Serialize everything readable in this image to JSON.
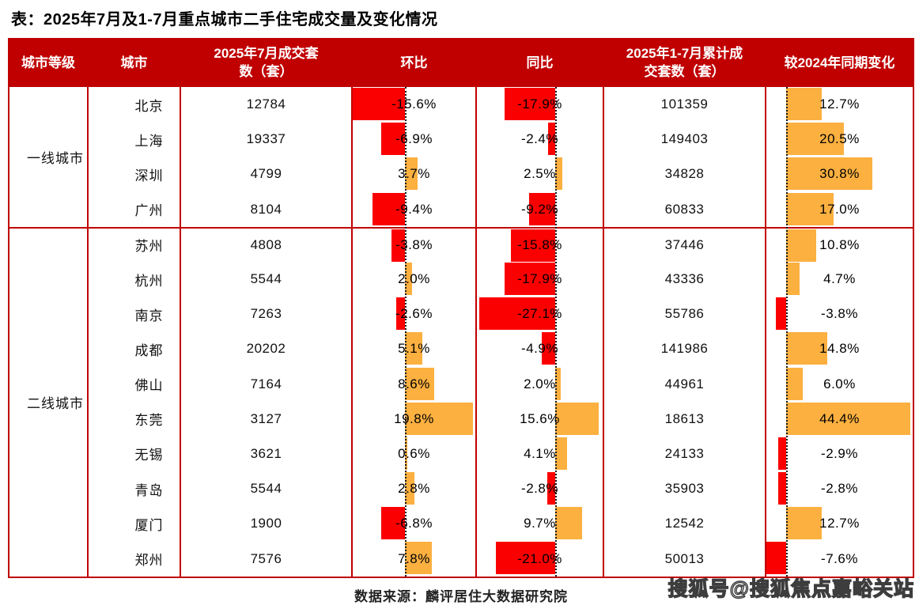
{
  "title": "表：2025年7月及1-7月重点城市二手住宅成交量及变化情况",
  "colors": {
    "header_red": "#C00000",
    "negative_bar_red": "#FB0000",
    "positive_bar_orange": "#FBB040"
  },
  "header": {
    "tier": "城市等级",
    "city": "城市",
    "july_sales": "2025年7月成交套\n数（套）",
    "mom": "环比",
    "yoy": "同比",
    "cum_sales": "2025年1-7月累计成\n交套数（套）",
    "vs2024": "较2024年同期变化"
  },
  "groups": [
    {
      "tier": "一线城市",
      "rows": [
        {
          "city": "北京",
          "july": "12784",
          "mom": {
            "value": -15.6,
            "label": "-15.6%"
          },
          "yoy": {
            "value": -17.9,
            "label": "-17.9%"
          },
          "cum": "101359",
          "chg": {
            "value": 12.7,
            "label": "12.7%"
          }
        },
        {
          "city": "上海",
          "july": "19337",
          "mom": {
            "value": -6.9,
            "label": "-6.9%"
          },
          "yoy": {
            "value": -2.4,
            "label": "-2.4%"
          },
          "cum": "149403",
          "chg": {
            "value": 20.5,
            "label": "20.5%"
          }
        },
        {
          "city": "深圳",
          "july": "4799",
          "mom": {
            "value": 3.7,
            "label": "3.7%"
          },
          "yoy": {
            "value": 2.5,
            "label": "2.5%"
          },
          "cum": "34828",
          "chg": {
            "value": 30.8,
            "label": "30.8%"
          }
        },
        {
          "city": "广州",
          "july": "8104",
          "mom": {
            "value": -9.4,
            "label": "-9.4%"
          },
          "yoy": {
            "value": -9.2,
            "label": "-9.2%"
          },
          "cum": "60833",
          "chg": {
            "value": 17.0,
            "label": "17.0%"
          }
        }
      ]
    },
    {
      "tier": "二线城市",
      "rows": [
        {
          "city": "苏州",
          "july": "4808",
          "mom": {
            "value": -3.8,
            "label": "-3.8%"
          },
          "yoy": {
            "value": -15.8,
            "label": "-15.8%"
          },
          "cum": "37446",
          "chg": {
            "value": 10.8,
            "label": "10.8%"
          }
        },
        {
          "city": "杭州",
          "july": "5544",
          "mom": {
            "value": 2.0,
            "label": "2.0%"
          },
          "yoy": {
            "value": -17.9,
            "label": "-17.9%"
          },
          "cum": "43336",
          "chg": {
            "value": 4.7,
            "label": "4.7%"
          }
        },
        {
          "city": "南京",
          "july": "7263",
          "mom": {
            "value": -2.6,
            "label": "-2.6%"
          },
          "yoy": {
            "value": -27.1,
            "label": "-27.1%"
          },
          "cum": "55786",
          "chg": {
            "value": -3.8,
            "label": "-3.8%"
          }
        },
        {
          "city": "成都",
          "july": "20202",
          "mom": {
            "value": 5.1,
            "label": "5.1%"
          },
          "yoy": {
            "value": -4.9,
            "label": "-4.9%"
          },
          "cum": "141986",
          "chg": {
            "value": 14.8,
            "label": "14.8%"
          }
        },
        {
          "city": "佛山",
          "july": "7164",
          "mom": {
            "value": 8.6,
            "label": "8.6%"
          },
          "yoy": {
            "value": 2.0,
            "label": "2.0%"
          },
          "cum": "44961",
          "chg": {
            "value": 6.0,
            "label": "6.0%"
          }
        },
        {
          "city": "东莞",
          "july": "3127",
          "mom": {
            "value": 19.8,
            "label": "19.8%"
          },
          "yoy": {
            "value": 15.6,
            "label": "15.6%"
          },
          "cum": "18613",
          "chg": {
            "value": 44.4,
            "label": "44.4%"
          }
        },
        {
          "city": "无锡",
          "july": "3621",
          "mom": {
            "value": 0.6,
            "label": "0.6%"
          },
          "yoy": {
            "value": 4.1,
            "label": "4.1%"
          },
          "cum": "24133",
          "chg": {
            "value": -2.9,
            "label": "-2.9%"
          }
        },
        {
          "city": "青岛",
          "july": "5544",
          "mom": {
            "value": 2.8,
            "label": "2.8%"
          },
          "yoy": {
            "value": -2.8,
            "label": "-2.8%"
          },
          "cum": "35903",
          "chg": {
            "value": -2.8,
            "label": "-2.8%"
          }
        },
        {
          "city": "厦门",
          "july": "1900",
          "mom": {
            "value": -6.8,
            "label": "-6.8%"
          },
          "yoy": {
            "value": 9.7,
            "label": "9.7%"
          },
          "cum": "12542",
          "chg": {
            "value": 12.7,
            "label": "12.7%"
          }
        },
        {
          "city": "郑州",
          "july": "7576",
          "mom": {
            "value": 7.8,
            "label": "7.8%"
          },
          "yoy": {
            "value": -21.0,
            "label": "-21.0%"
          },
          "cum": "50013",
          "chg": {
            "value": -7.6,
            "label": "-7.6%"
          }
        }
      ]
    }
  ],
  "footer": {
    "source": "数据来源：麟评居住大数据研究院",
    "watermark": "搜狐号@搜狐焦点嘉峪关站"
  },
  "chart_data": {
    "type": "table",
    "title": "表：2025年7月及1-7月重点城市二手住宅成交量及变化情况",
    "columns": [
      "城市等级",
      "城市",
      "2025年7月成交套数（套）",
      "环比",
      "同比",
      "2025年1-7月累计成交套数（套）",
      "较2024年同期变化"
    ],
    "rows": [
      [
        "一线城市",
        "北京",
        12784,
        -15.6,
        -17.9,
        101359,
        12.7
      ],
      [
        "一线城市",
        "上海",
        19337,
        -6.9,
        -2.4,
        149403,
        20.5
      ],
      [
        "一线城市",
        "深圳",
        4799,
        3.7,
        2.5,
        34828,
        30.8
      ],
      [
        "一线城市",
        "广州",
        8104,
        -9.4,
        -9.2,
        60833,
        17.0
      ],
      [
        "二线城市",
        "苏州",
        4808,
        -3.8,
        -15.8,
        37446,
        10.8
      ],
      [
        "二线城市",
        "杭州",
        5544,
        2.0,
        -17.9,
        43336,
        4.7
      ],
      [
        "二线城市",
        "南京",
        7263,
        -2.6,
        -27.1,
        55786,
        -3.8
      ],
      [
        "二线城市",
        "成都",
        20202,
        5.1,
        -4.9,
        141986,
        14.8
      ],
      [
        "二线城市",
        "佛山",
        7164,
        8.6,
        2.0,
        44961,
        6.0
      ],
      [
        "二线城市",
        "东莞",
        3127,
        19.8,
        15.6,
        18613,
        44.4
      ],
      [
        "二线城市",
        "无锡",
        3621,
        0.6,
        4.1,
        24133,
        -2.9
      ],
      [
        "二线城市",
        "青岛",
        5544,
        2.8,
        -2.8,
        35903,
        -2.8
      ],
      [
        "二线城市",
        "厦门",
        1900,
        -6.8,
        9.7,
        12542,
        12.7
      ],
      [
        "二线城市",
        "郑州",
        7576,
        7.8,
        -21.0,
        50013,
        -7.6
      ]
    ],
    "notes": "环比 / 同比 / 较2024年同期变化 columns contain in-cell bar charts: red bars = negative values, orange bars = positive values, dotted vertical line = zero axis",
    "source": "数据来源：麟评居住大数据研究院"
  }
}
